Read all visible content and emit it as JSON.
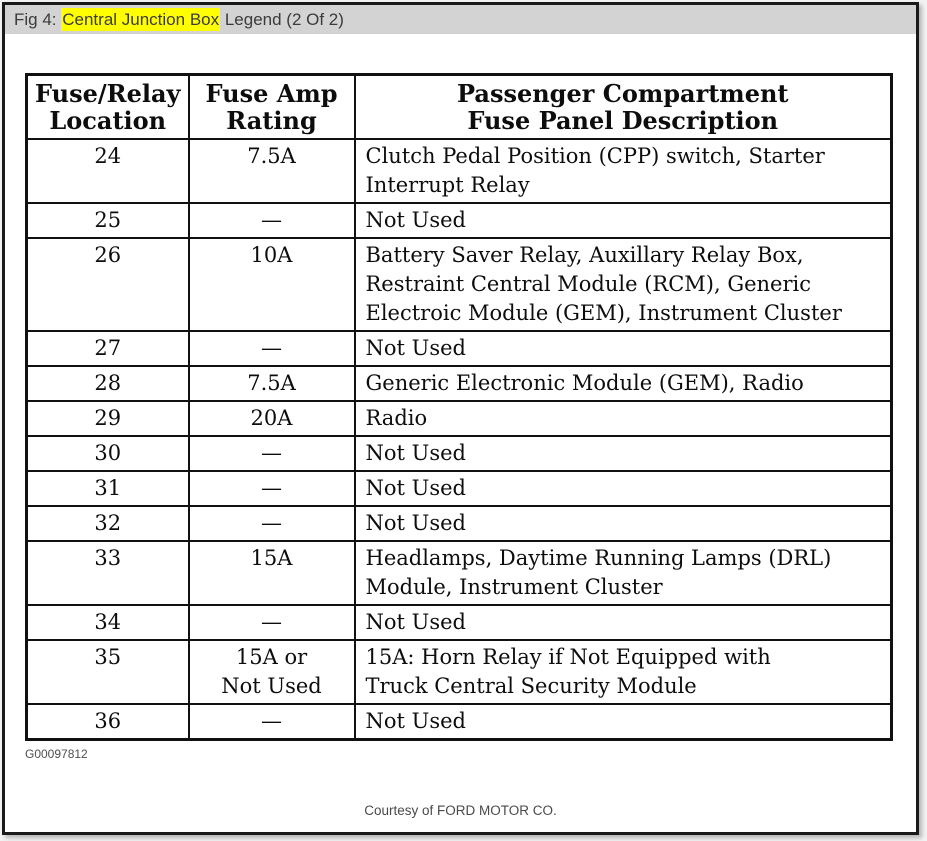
{
  "figure_header": {
    "prefix": "Fig 4: ",
    "highlight": "Central Junction Box",
    "suffix": " Legend (2 Of 2)",
    "highlight_color": "#ffff00",
    "bar_color": "#d3d3d3"
  },
  "table": {
    "headers": {
      "location": "Fuse/Relay\nLocation",
      "rating": "Fuse Amp\nRating",
      "description": "Passenger Compartment\nFuse Panel Description"
    },
    "rows": [
      {
        "location": "24",
        "rating": "7.5A",
        "description": "Clutch Pedal Position (CPP) switch, Starter\nInterrupt Relay"
      },
      {
        "location": "25",
        "rating": "—",
        "description": "Not Used"
      },
      {
        "location": "26",
        "rating": "10A",
        "description": "Battery Saver Relay, Auxillary Relay Box,\nRestraint Central Module (RCM), Generic\nElectroic Module (GEM), Instrument Cluster"
      },
      {
        "location": "27",
        "rating": "—",
        "description": "Not Used"
      },
      {
        "location": "28",
        "rating": "7.5A",
        "description": "Generic Electronic Module (GEM), Radio"
      },
      {
        "location": "29",
        "rating": "20A",
        "description": "Radio"
      },
      {
        "location": "30",
        "rating": "—",
        "description": "Not Used"
      },
      {
        "location": "31",
        "rating": "—",
        "description": "Not Used"
      },
      {
        "location": "32",
        "rating": "—",
        "description": "Not Used"
      },
      {
        "location": "33",
        "rating": "15A",
        "description": "Headlamps, Daytime Running Lamps (DRL)\nModule, Instrument Cluster"
      },
      {
        "location": "34",
        "rating": "—",
        "description": "Not Used"
      },
      {
        "location": "35",
        "rating": "15A or\nNot Used",
        "description": "15A: Horn Relay if Not Equipped with\nTruck Central Security Module"
      },
      {
        "location": "36",
        "rating": "—",
        "description": "Not Used"
      }
    ]
  },
  "footer": {
    "figure_id": "G00097812",
    "courtesy": "Courtesy of FORD MOTOR CO."
  }
}
